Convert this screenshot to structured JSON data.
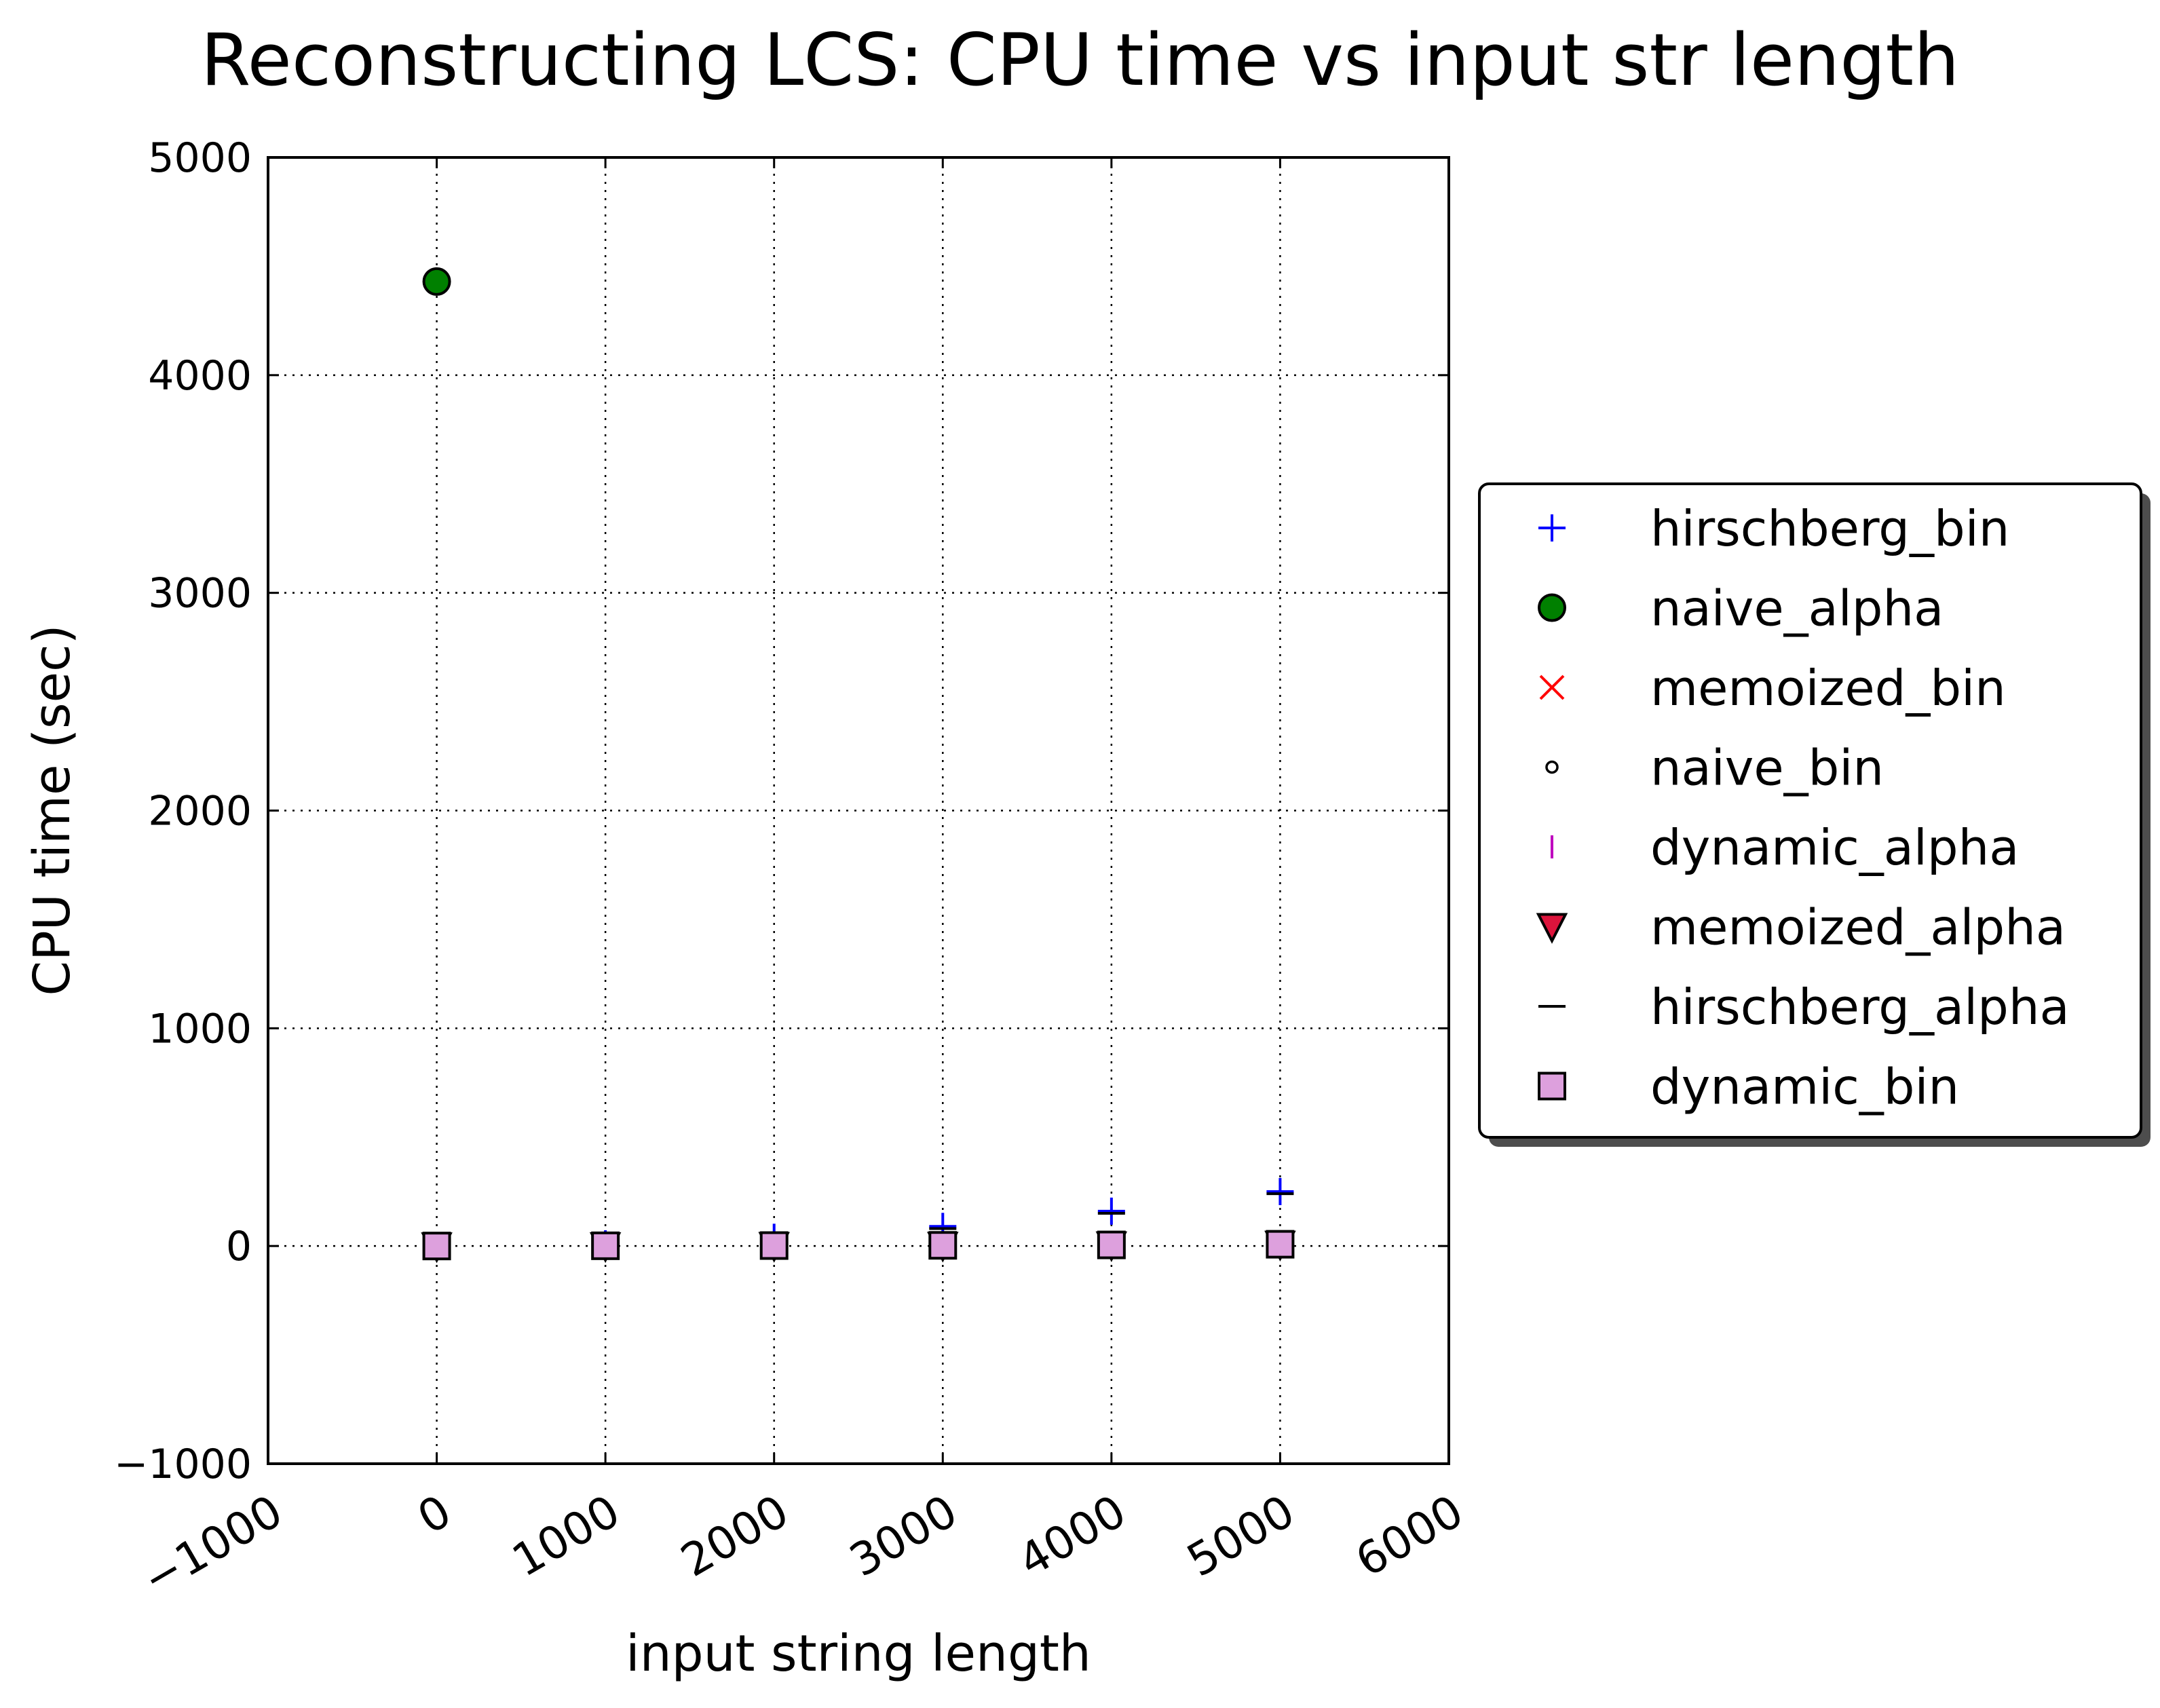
{
  "chart_data": {
    "type": "scatter",
    "title": "Reconstructing LCS: CPU time vs input str length",
    "xlabel": "input string length",
    "ylabel": "CPU time (sec)",
    "xlim": [
      -1000,
      6000
    ],
    "ylim": [
      -1000,
      5000
    ],
    "xticks": [
      -1000,
      0,
      1000,
      2000,
      3000,
      4000,
      5000,
      6000
    ],
    "yticks": [
      -1000,
      0,
      1000,
      2000,
      3000,
      4000,
      5000
    ],
    "xtick_labels": [
      "−1000",
      "0",
      "1000",
      "2000",
      "3000",
      "4000",
      "5000",
      "6000"
    ],
    "ytick_labels": [
      "−1000",
      "0",
      "1000",
      "2000",
      "3000",
      "4000",
      "5000"
    ],
    "xtick_rotation": -30,
    "grid": true,
    "grid_style": "dotted",
    "legend_position": "right-outside",
    "series": [
      {
        "name": "hirschberg_bin",
        "marker": "plus",
        "color": "#0000ff",
        "x": [
          0,
          1000,
          2000,
          3000,
          4000,
          5000
        ],
        "y": [
          0,
          10,
          40,
          90,
          160,
          250
        ]
      },
      {
        "name": "naive_alpha",
        "marker": "circle",
        "color": "#008000",
        "x": [
          0
        ],
        "y": [
          4430
        ]
      },
      {
        "name": "memoized_bin",
        "marker": "x",
        "color": "#ff0000",
        "x": [
          0,
          1000,
          2000,
          3000,
          4000,
          5000
        ],
        "y": [
          0,
          1,
          2,
          3,
          5,
          8
        ]
      },
      {
        "name": "naive_bin",
        "marker": "small-circle",
        "color": "#ffffff",
        "x": [
          0
        ],
        "y": [
          0
        ]
      },
      {
        "name": "dynamic_alpha",
        "marker": "vline",
        "color": "#bf00bf",
        "x": [
          0,
          1000,
          2000,
          3000,
          4000,
          5000
        ],
        "y": [
          0,
          1,
          2,
          3,
          5,
          8
        ]
      },
      {
        "name": "memoized_alpha",
        "marker": "triangle-down",
        "color": "#dc143c",
        "x": [
          0,
          1000,
          2000,
          3000,
          4000,
          5000
        ],
        "y": [
          0,
          1,
          2,
          3,
          5,
          8
        ]
      },
      {
        "name": "hirschberg_alpha",
        "marker": "hline",
        "color": "#000000",
        "x": [
          0,
          1000,
          2000,
          3000,
          4000,
          5000
        ],
        "y": [
          0,
          10,
          35,
          80,
          150,
          240
        ]
      },
      {
        "name": "dynamic_bin",
        "marker": "square",
        "color": "#dda0dd",
        "x": [
          0,
          1000,
          2000,
          3000,
          4000,
          5000
        ],
        "y": [
          0,
          1,
          2,
          3,
          5,
          8
        ]
      }
    ]
  }
}
